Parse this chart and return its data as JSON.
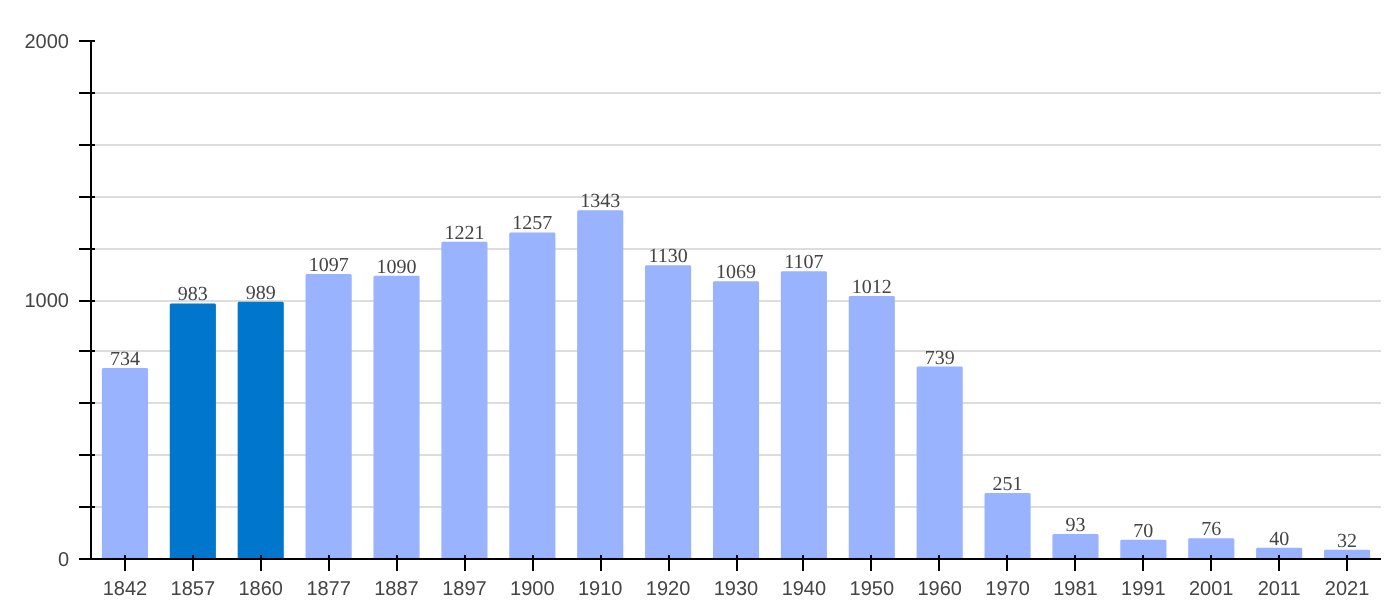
{
  "chart_data": {
    "type": "bar",
    "categories": [
      "1842",
      "1857",
      "1860",
      "1877",
      "1887",
      "1897",
      "1900",
      "1910",
      "1920",
      "1930",
      "1940",
      "1950",
      "1960",
      "1970",
      "1981",
      "1991",
      "2001",
      "2011",
      "2021"
    ],
    "values": [
      734,
      983,
      989,
      1097,
      1090,
      1221,
      1257,
      1343,
      1130,
      1069,
      1107,
      1012,
      739,
      251,
      93,
      70,
      76,
      40,
      32
    ],
    "colors": [
      "#99b3ff",
      "#0077cc",
      "#0077cc",
      "#99b3ff",
      "#99b3ff",
      "#99b3ff",
      "#99b3ff",
      "#99b3ff",
      "#99b3ff",
      "#99b3ff",
      "#99b3ff",
      "#99b3ff",
      "#99b3ff",
      "#99b3ff",
      "#99b3ff",
      "#99b3ff",
      "#99b3ff",
      "#99b3ff",
      "#99b3ff"
    ],
    "ylim": [
      0,
      2000
    ],
    "yticks": [
      0,
      {
        "value": 200,
        "label": null
      },
      {
        "value": 400,
        "label": null
      },
      {
        "value": 600,
        "label": null
      },
      {
        "value": 800,
        "label": null
      },
      1000,
      {
        "value": 1200,
        "label": null
      },
      {
        "value": 1400,
        "label": null
      },
      {
        "value": 1600,
        "label": null
      },
      {
        "value": 1800,
        "label": null
      },
      2000
    ],
    "grid": "y",
    "data_labels": true
  }
}
